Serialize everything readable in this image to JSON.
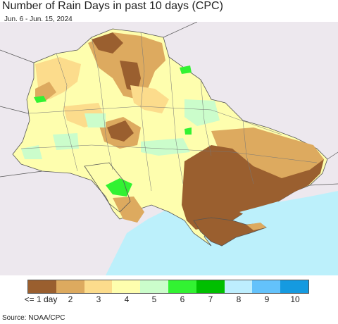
{
  "title": "Number of Rain Days in past 10 days (CPC)",
  "subtitle": "Jun. 6 - Jun. 15, 2024",
  "source": "Source: NOAA/CPC",
  "legend": {
    "colors": [
      "#9a5f2f",
      "#ddaa5f",
      "#fcdc8c",
      "#fefeae",
      "#cbfdcb",
      "#32f232",
      "#00bf00",
      "#bdeefe",
      "#63c2fb",
      "#159ae0"
    ],
    "labels": [
      "<= 1 day",
      "2",
      "3",
      "4",
      "5",
      "6",
      "7",
      "8",
      "9",
      "10"
    ]
  },
  "map_colors": {
    "land_outside": "#ede8ee",
    "sea": "#bcf0fb",
    "border": "#555555"
  }
}
